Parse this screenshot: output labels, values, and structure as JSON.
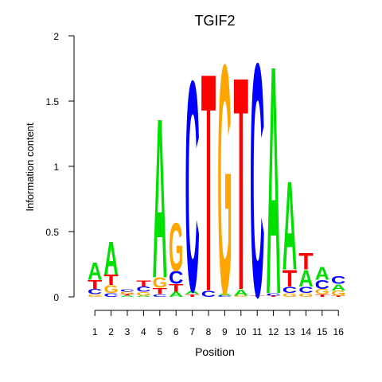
{
  "chart_data": {
    "type": "sequence-logo",
    "title": "TGIF2",
    "xlabel": "Position",
    "ylabel": "Information content",
    "ylim": [
      0,
      2
    ],
    "yticks": [
      "0",
      "0.5",
      "1",
      "1.5",
      "2"
    ],
    "ytick_values": [
      0,
      0.5,
      1,
      1.5,
      2
    ],
    "positions": [
      "1",
      "2",
      "3",
      "4",
      "5",
      "6",
      "7",
      "8",
      "9",
      "10",
      "11",
      "12",
      "13",
      "14",
      "15",
      "16"
    ],
    "colors": {
      "A": "#00e000",
      "C": "#0000ff",
      "G": "#ffa500",
      "T": "#ff0000"
    },
    "columns": [
      [
        [
          "G",
          0.02
        ],
        [
          "C",
          0.04
        ],
        [
          "T",
          0.07
        ],
        [
          "A",
          0.14
        ]
      ],
      [
        [
          "C",
          0.03
        ],
        [
          "G",
          0.06
        ],
        [
          "T",
          0.08
        ],
        [
          "A",
          0.26
        ]
      ],
      [
        [
          "A",
          0.01
        ],
        [
          "T",
          0.01
        ],
        [
          "G",
          0.02
        ],
        [
          "C",
          0.02
        ]
      ],
      [
        [
          "A",
          0.01
        ],
        [
          "G",
          0.03
        ],
        [
          "C",
          0.04
        ],
        [
          "T",
          0.05
        ]
      ],
      [
        [
          "C",
          0.02
        ],
        [
          "T",
          0.05
        ],
        [
          "G",
          0.08
        ],
        [
          "A",
          1.26
        ]
      ],
      [
        [
          "A",
          0.04
        ],
        [
          "T",
          0.06
        ],
        [
          "C",
          0.1
        ],
        [
          "G",
          0.38
        ]
      ],
      [
        [
          "T",
          0.02
        ],
        [
          "A",
          0.03
        ],
        [
          "C",
          1.66
        ]
      ],
      [
        [
          "C",
          0.05
        ],
        [
          "T",
          1.72
        ]
      ],
      [
        [
          "C",
          0.01
        ],
        [
          "A",
          0.02
        ],
        [
          "G",
          1.81
        ]
      ],
      [
        [
          "G",
          0.01
        ],
        [
          "A",
          0.05
        ],
        [
          "T",
          1.68
        ]
      ],
      [
        [
          "T",
          0.01
        ],
        [
          "C",
          1.84
        ]
      ],
      [
        [
          "T",
          0.01
        ],
        [
          "C",
          0.02
        ],
        [
          "A",
          1.8
        ]
      ],
      [
        [
          "G",
          0.03
        ],
        [
          "C",
          0.05
        ],
        [
          "T",
          0.13
        ],
        [
          "A",
          0.7
        ]
      ],
      [
        [
          "G",
          0.03
        ],
        [
          "C",
          0.05
        ],
        [
          "A",
          0.13
        ],
        [
          "T",
          0.13
        ]
      ],
      [
        [
          "T",
          0.02
        ],
        [
          "G",
          0.04
        ],
        [
          "C",
          0.07
        ],
        [
          "A",
          0.1
        ]
      ],
      [
        [
          "T",
          0.01
        ],
        [
          "G",
          0.04
        ],
        [
          "A",
          0.05
        ],
        [
          "C",
          0.06
        ]
      ]
    ]
  }
}
